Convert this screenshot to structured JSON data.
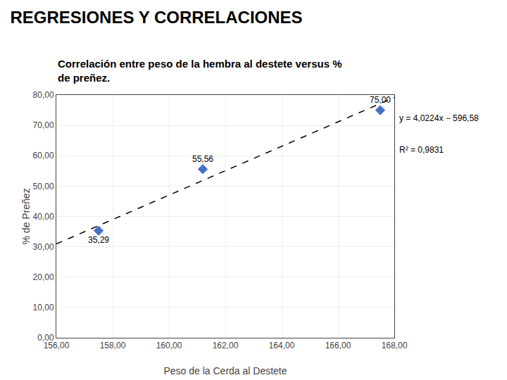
{
  "chart_data": {
    "type": "scatter",
    "title": "REGRESIONES Y CORRELACIONES",
    "subtitle": [
      "Correlación entre peso de la hembra al destete versus %",
      "de preñez."
    ],
    "xlabel": "Peso de la Cerda al Destete",
    "ylabel": "% de Preñez",
    "series": [
      {
        "type": "line",
        "color": "#000000",
        "line_style": "dashed",
        "x": [
          156.0,
          168.0
        ],
        "values": [
          30.9144,
          79.1832
        ]
      },
      {
        "type": "scatter",
        "color": "#4472C4",
        "marker": "diamond",
        "x": [
          157.5,
          161.2,
          167.5
        ],
        "values": [
          35.29,
          55.56,
          75.0
        ],
        "value_labels": [
          "35,29",
          "55,56",
          "75,00"
        ]
      }
    ],
    "data_labels": true,
    "annotations": [
      "y = 4,0224x − 596,58",
      "R² = 0,9831"
    ],
    "xlim": [
      156.0,
      168.0
    ],
    "ylim": [
      0.0,
      80.0
    ],
    "xticks": [
      {
        "value": 156.0,
        "label": "156,00"
      },
      {
        "value": 158.0,
        "label": "158,00"
      },
      {
        "value": 160.0,
        "label": "160,00"
      },
      {
        "value": 162.0,
        "label": "162,00"
      },
      {
        "value": 164.0,
        "label": "164,00"
      },
      {
        "value": 166.0,
        "label": "166,00"
      },
      {
        "value": 168.0,
        "label": "168,00"
      }
    ],
    "yticks": [
      {
        "value": 0.0,
        "label": "0,00"
      },
      {
        "value": 10.0,
        "label": "10,00"
      },
      {
        "value": 20.0,
        "label": "20,00"
      },
      {
        "value": 30.0,
        "label": "30,00"
      },
      {
        "value": 40.0,
        "label": "40,00"
      },
      {
        "value": 50.0,
        "label": "50,00"
      },
      {
        "value": 60.0,
        "label": "60,00"
      },
      {
        "value": 70.0,
        "label": "70,00"
      },
      {
        "value": 80.0,
        "label": "80,00"
      }
    ],
    "grid": true
  }
}
